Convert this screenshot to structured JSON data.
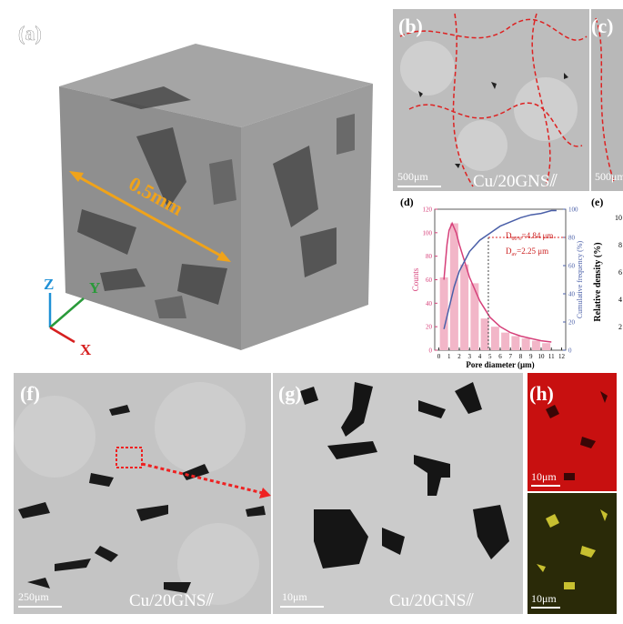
{
  "panels": {
    "a": {
      "label": "(a)",
      "scale": "0.5mm",
      "axes": [
        "Z",
        "Y",
        "X"
      ]
    },
    "b": {
      "label": "(b)",
      "scale": "500μm",
      "caption": "Cu/20GNS⫽"
    },
    "c": {
      "label": "(c)",
      "scale": "500μm"
    },
    "e": {
      "label": "(e)",
      "y_label": "Relative density (%)",
      "ticks": [
        "10",
        "8",
        "6",
        "4",
        "2"
      ]
    },
    "f": {
      "label": "(f)",
      "scale": "250μm",
      "caption": "Cu/20GNS⫽"
    },
    "g": {
      "label": "(g)",
      "scale": "10μm",
      "caption": "Cu/20GNS⫽"
    },
    "h": {
      "label": "(h)",
      "scales": [
        "10μm",
        "10μm"
      ]
    }
  },
  "chart_data": {
    "type": "bar",
    "label": "(d)",
    "xlabel": "Pore diameter (μm)",
    "ylabel": "Counts",
    "y2label": "Cumulative frequency (%)",
    "x": [
      0.5,
      1.5,
      2.5,
      3.5,
      4.5,
      5.5,
      6.5,
      7.5,
      8.5,
      9.5,
      10.5
    ],
    "series": [
      {
        "color": "#f2b6c8",
        "values": [
          62,
          108,
          73,
          57,
          27,
          20,
          15,
          12,
          10,
          8,
          6
        ]
      },
      {
        "type": "line",
        "color": "#d6407a",
        "x": [
          0.5,
          0.8,
          1,
          1.3,
          1.7,
          2,
          3,
          4,
          5,
          6,
          7,
          8,
          9,
          10,
          11
        ],
        "values": [
          60,
          90,
          102,
          108,
          100,
          90,
          62,
          42,
          28,
          20,
          15,
          12,
          10,
          8,
          7
        ]
      },
      {
        "type": "line",
        "axis": "y2",
        "color": "#4a5fa8",
        "x": [
          0.5,
          1,
          1.5,
          2,
          3,
          4,
          5,
          6,
          7,
          8,
          9,
          10,
          11,
          11.5
        ],
        "values": [
          15,
          30,
          45,
          56,
          70,
          78,
          83,
          88,
          91,
          94,
          96,
          97,
          99,
          99
        ]
      }
    ],
    "marker": {
      "x": 4.84,
      "y2": 80
    },
    "annotations": [
      {
        "main": "D",
        "sub": "80%",
        "rest": "=4.84 μm"
      },
      {
        "main": "D",
        "sub": "av",
        "rest": "=2.25 μm"
      }
    ],
    "xlim": [
      -0.4,
      12.4
    ],
    "xticks": [
      0,
      1,
      2,
      3,
      4,
      5,
      6,
      7,
      8,
      9,
      10,
      11,
      12
    ],
    "ylim": [
      0,
      120
    ],
    "yticks": [
      0,
      20,
      40,
      60,
      80,
      100,
      120
    ],
    "y2lim": [
      0,
      100
    ],
    "y2ticks": [
      0,
      20,
      40,
      60,
      80,
      100
    ]
  }
}
